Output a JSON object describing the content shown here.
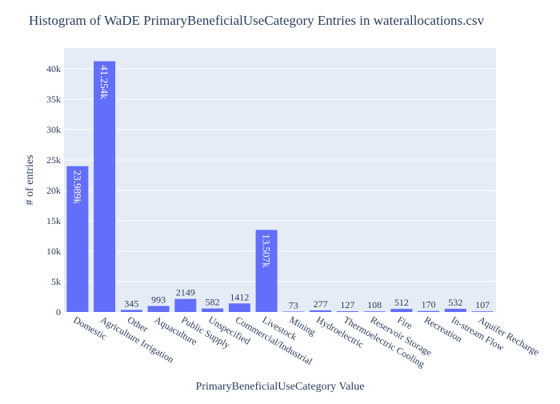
{
  "chart_data": {
    "type": "bar",
    "title": "Histogram of WaDE PrimaryBeneficialUseCategory Entries in waterallocations.csv",
    "xlabel": "PrimaryBeneficialUseCategory Value",
    "ylabel": "# of entries",
    "ylim": [
      0,
      43425
    ],
    "yticks": [
      0,
      5000,
      10000,
      15000,
      20000,
      25000,
      30000,
      35000,
      40000
    ],
    "ytick_labels": [
      "0",
      "5k",
      "10k",
      "15k",
      "20k",
      "25k",
      "30k",
      "35k",
      "40k"
    ],
    "grid": true,
    "categories": [
      "Domestic",
      "Agriculture Irrigation",
      "Other",
      "Aquaculture",
      "Public Supply",
      "Unspecified",
      "Commercial/Industrial",
      "Livestock",
      "Mining",
      "Hydroelectric",
      "Thermoelectric Cooling",
      "Reservoir Storage",
      "Fire",
      "Recreation",
      "In-stream Flow",
      "Aquifer Recharge"
    ],
    "values": [
      23989,
      41254,
      345,
      993,
      2149,
      582,
      1412,
      13507,
      73,
      277,
      127,
      108,
      512,
      170,
      532,
      107
    ],
    "data_labels": [
      "23.989k",
      "41.254k",
      "345",
      "993",
      "2149",
      "582",
      "1412",
      "13.507k",
      "73",
      "277",
      "127",
      "108",
      "512",
      "170",
      "532",
      "107"
    ],
    "colors": {
      "bar": "#636efa",
      "plot_bg": "#e5ecf6",
      "grid": "#ffffff",
      "text": "#2a3f5f"
    }
  }
}
